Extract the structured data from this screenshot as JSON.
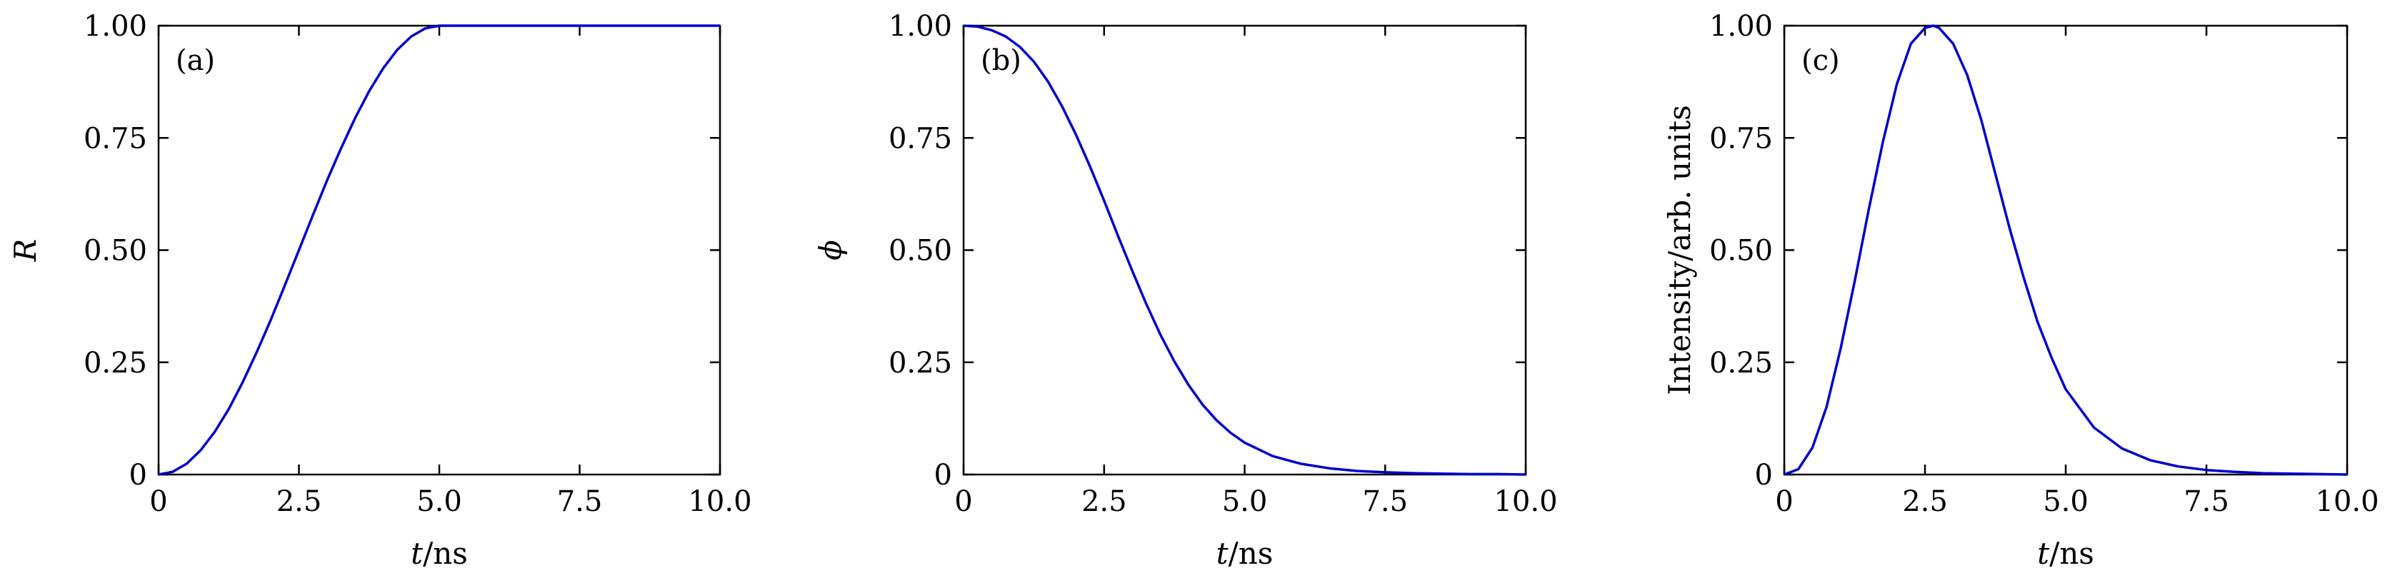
{
  "chart_data": [
    {
      "type": "line",
      "panel_tag": "(a)",
      "xlabel_var": "t",
      "xlabel_unit": "/ns",
      "ylabel": "R",
      "ylabel_italic": true,
      "xlim": [
        0,
        10
      ],
      "ylim": [
        0,
        1
      ],
      "xticks": [
        "0",
        "2.5",
        "5.0",
        "7.5",
        "10.0"
      ],
      "yticks": [
        "0",
        "0.25",
        "0.50",
        "0.75",
        "1.00"
      ],
      "grid": false,
      "color": "#0000cc",
      "series": [
        {
          "x": [
            0,
            0.25,
            0.5,
            0.75,
            1.0,
            1.25,
            1.5,
            1.75,
            2.0,
            2.25,
            2.5,
            2.75,
            3.0,
            3.25,
            3.5,
            3.75,
            4.0,
            4.25,
            4.5,
            4.75,
            5.0,
            5.5,
            6.0,
            7.0,
            8.0,
            9.0,
            10.0
          ],
          "y": [
            0,
            0.006,
            0.024,
            0.054,
            0.095,
            0.146,
            0.206,
            0.273,
            0.345,
            0.422,
            0.5,
            0.578,
            0.655,
            0.727,
            0.794,
            0.854,
            0.905,
            0.946,
            0.976,
            0.994,
            1.0,
            1.0,
            1.0,
            1.0,
            1.0,
            1.0,
            1.0
          ]
        }
      ]
    },
    {
      "type": "line",
      "panel_tag": "(b)",
      "xlabel_var": "t",
      "xlabel_unit": "/ns",
      "ylabel": "ϕ",
      "ylabel_italic": true,
      "xlim": [
        0,
        10
      ],
      "ylim": [
        0,
        1
      ],
      "xticks": [
        "0",
        "2.5",
        "5.0",
        "7.5",
        "10.0"
      ],
      "yticks": [
        "0",
        "0.25",
        "0.50",
        "0.75",
        "1.00"
      ],
      "grid": false,
      "color": "#0000cc",
      "series": [
        {
          "x": [
            0,
            0.25,
            0.5,
            0.75,
            1.0,
            1.25,
            1.5,
            1.75,
            2.0,
            2.25,
            2.5,
            2.75,
            3.0,
            3.25,
            3.5,
            3.75,
            4.0,
            4.25,
            4.5,
            4.75,
            5.0,
            5.5,
            6.0,
            6.5,
            7.0,
            7.5,
            8.0,
            8.5,
            9.0,
            9.5,
            10.0
          ],
          "y": [
            1.0,
            0.998,
            0.99,
            0.976,
            0.953,
            0.92,
            0.876,
            0.821,
            0.757,
            0.686,
            0.61,
            0.531,
            0.454,
            0.38,
            0.312,
            0.252,
            0.2,
            0.156,
            0.121,
            0.093,
            0.071,
            0.041,
            0.024,
            0.014,
            0.008,
            0.005,
            0.003,
            0.002,
            0.001,
            0.001,
            0.0
          ]
        }
      ]
    },
    {
      "type": "line",
      "panel_tag": "(c)",
      "xlabel_var": "t",
      "xlabel_unit": "/ns",
      "ylabel": "Intensity/arb. units",
      "ylabel_italic": false,
      "xlim": [
        0,
        10
      ],
      "ylim": [
        0,
        1
      ],
      "xticks": [
        "0",
        "2.5",
        "5.0",
        "7.5",
        "10.0"
      ],
      "yticks": [
        "0",
        "0.25",
        "0.50",
        "0.75",
        "1.00"
      ],
      "grid": false,
      "color": "#0000cc",
      "series": [
        {
          "x": [
            0,
            0.25,
            0.5,
            0.75,
            1.0,
            1.25,
            1.5,
            1.75,
            2.0,
            2.25,
            2.5,
            2.65,
            2.75,
            3.0,
            3.25,
            3.5,
            3.75,
            4.0,
            4.25,
            4.5,
            4.75,
            5.0,
            5.5,
            6.0,
            6.5,
            7.0,
            7.5,
            8.0,
            8.5,
            9.0,
            9.5,
            10.0
          ],
          "y": [
            0,
            0.012,
            0.06,
            0.15,
            0.28,
            0.43,
            0.59,
            0.74,
            0.87,
            0.96,
            0.995,
            1.0,
            0.995,
            0.96,
            0.89,
            0.79,
            0.67,
            0.55,
            0.44,
            0.34,
            0.26,
            0.19,
            0.105,
            0.058,
            0.032,
            0.018,
            0.01,
            0.006,
            0.003,
            0.002,
            0.001,
            0.0
          ]
        }
      ]
    }
  ]
}
